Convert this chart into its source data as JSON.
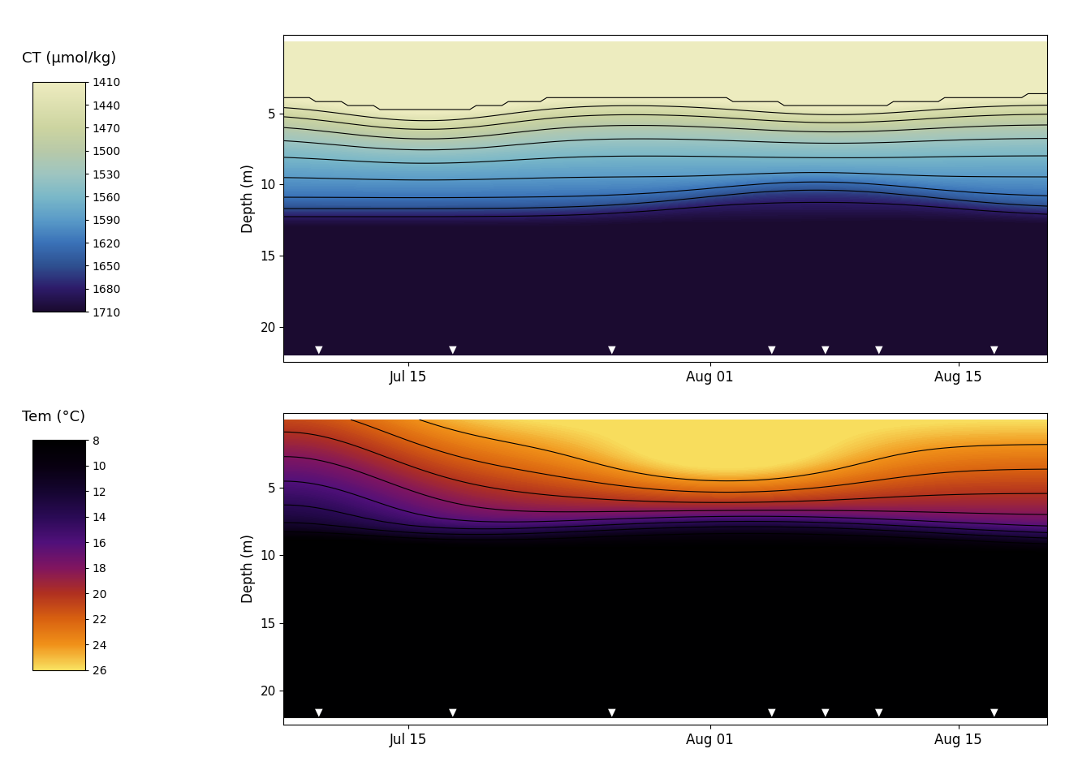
{
  "ct_label": "CT (μmol/kg)",
  "temp_label": "Tem (°C)",
  "depth_label": "Depth (m)",
  "ct_tick_values": [
    1710,
    1680,
    1650,
    1620,
    1590,
    1560,
    1530,
    1500,
    1470,
    1440,
    1410
  ],
  "temp_tick_values": [
    26,
    24,
    22,
    20,
    18,
    16,
    14,
    12,
    10,
    8
  ],
  "ct_vmin": 1410,
  "ct_vmax": 1710,
  "temp_vmin": 8,
  "temp_vmax": 26,
  "ct_contour_levels": [
    1410,
    1440,
    1470,
    1500,
    1530,
    1560,
    1590,
    1620,
    1650,
    1680,
    1710
  ],
  "temp_contour_levels": [
    8,
    10,
    12,
    14,
    16,
    18,
    20,
    22,
    24,
    26
  ],
  "x_tick_days": [
    7,
    24,
    38
  ],
  "x_tick_labels": [
    "Jul 15",
    "Aug 01",
    "Aug 15"
  ],
  "depth_yticks": [
    5,
    10,
    15,
    20
  ],
  "x_range": [
    0,
    43
  ],
  "depth_range": [
    0,
    22
  ],
  "ct_colors": [
    "#eeecc0",
    "#dde0b0",
    "#ccd4a0",
    "#b8c9a8",
    "#9ec5c0",
    "#7ab8c8",
    "#5a9bc8",
    "#3a72b8",
    "#2e5090",
    "#2d1b69",
    "#1a0a2e"
  ],
  "temp_colors": [
    "#000000",
    "#080010",
    "#150530",
    "#2a0a55",
    "#50107a",
    "#801560",
    "#b03020",
    "#d86010",
    "#f09018",
    "#f8e060"
  ],
  "marker_x_positions": [
    2.0,
    9.5,
    18.5,
    27.5,
    30.5,
    33.5,
    40.0
  ],
  "background_color": "#ffffff"
}
